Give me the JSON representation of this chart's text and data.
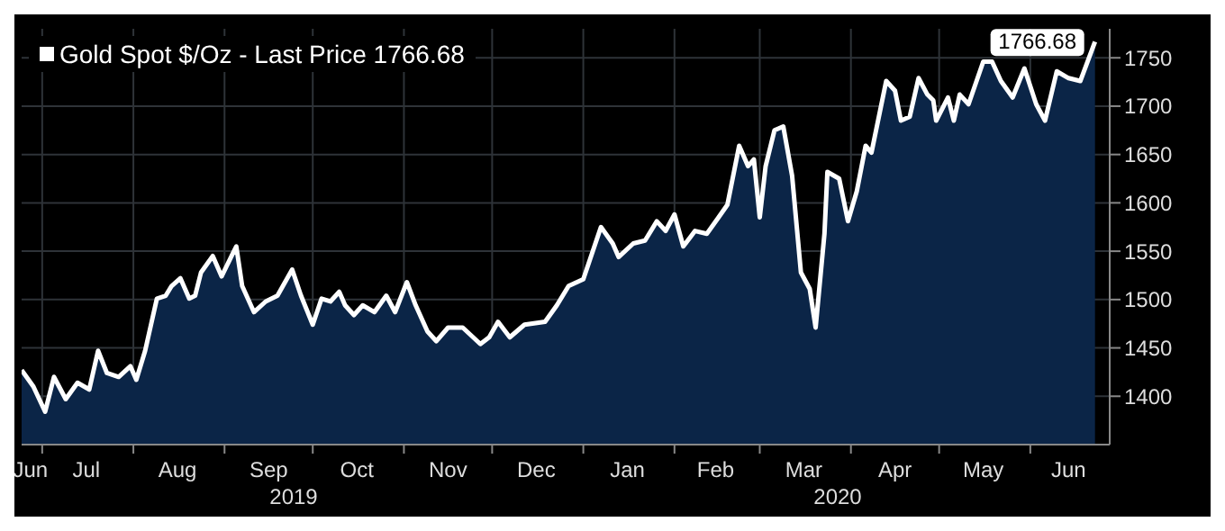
{
  "chart_data": {
    "type": "area",
    "legend": "top left",
    "grid": true,
    "ylim": [
      1350,
      1780
    ],
    "yticks": [
      1400,
      1450,
      1500,
      1550,
      1600,
      1650,
      1700,
      1750
    ],
    "xlim": [
      "2019-06-24",
      "2020-06-28"
    ],
    "xticks": [
      {
        "value": "2019-07-01",
        "label": null
      },
      {
        "value": "2019-08-01",
        "label": null
      },
      {
        "value": "2019-09-01",
        "label": null
      },
      {
        "value": "2019-10-01",
        "label": null
      },
      {
        "value": "2019-11-01",
        "label": null
      },
      {
        "value": "2019-12-01",
        "label": null
      },
      {
        "value": "2020-01-01",
        "label": null
      },
      {
        "value": "2020-02-01",
        "label": null
      },
      {
        "value": "2020-03-01",
        "label": null
      },
      {
        "value": "2020-04-01",
        "label": null
      },
      {
        "value": "2020-05-01",
        "label": null
      },
      {
        "value": "2020-06-01",
        "label": null
      },
      {
        "value": "2019-06-27",
        "label": "Jun"
      },
      {
        "value": "2019-07-16",
        "label": "Jul"
      },
      {
        "value": "2019-08-16",
        "label": "Aug"
      },
      {
        "value": "2019-09-16",
        "label": "Sep"
      },
      {
        "value": "2019-10-16",
        "label": "Oct"
      },
      {
        "value": "2019-11-16",
        "label": "Nov"
      },
      {
        "value": "2019-12-16",
        "label": "Dec"
      },
      {
        "value": "2020-01-16",
        "label": "Jan"
      },
      {
        "value": "2020-02-15",
        "label": "Feb"
      },
      {
        "value": "2020-03-16",
        "label": "Mar"
      },
      {
        "value": "2020-04-16",
        "label": "Apr"
      },
      {
        "value": "2020-05-16",
        "label": "May"
      },
      {
        "value": "2020-06-14",
        "label": "Jun"
      }
    ],
    "annotations": [
      "2019",
      "2020"
    ],
    "series": [
      {
        "name": "Gold Spot $/Oz - Last Price 1766.68",
        "color": "#ffffff",
        "x": [
          "2019-06-24",
          "2019-06-28",
          "2019-07-02",
          "2019-07-05",
          "2019-07-09",
          "2019-07-13",
          "2019-07-17",
          "2019-07-20",
          "2019-07-23",
          "2019-07-27",
          "2019-07-31",
          "2019-08-02",
          "2019-08-05",
          "2019-08-09",
          "2019-08-12",
          "2019-08-14",
          "2019-08-17",
          "2019-08-20",
          "2019-08-22",
          "2019-08-24",
          "2019-08-28",
          "2019-08-31",
          "2019-09-05",
          "2019-09-07",
          "2019-09-11",
          "2019-09-15",
          "2019-09-19",
          "2019-09-24",
          "2019-09-27",
          "2019-10-01",
          "2019-10-04",
          "2019-10-07",
          "2019-10-10",
          "2019-10-12",
          "2019-10-15",
          "2019-10-18",
          "2019-10-22",
          "2019-10-26",
          "2019-10-29",
          "2019-11-02",
          "2019-11-05",
          "2019-11-09",
          "2019-11-12",
          "2019-11-16",
          "2019-11-21",
          "2019-11-27",
          "2019-11-30",
          "2019-12-03",
          "2019-12-07",
          "2019-12-12",
          "2019-12-19",
          "2019-12-23",
          "2019-12-27",
          "2020-01-01",
          "2020-01-07",
          "2020-01-11",
          "2020-01-13",
          "2020-01-18",
          "2020-01-22",
          "2020-01-26",
          "2020-01-29",
          "2020-02-01",
          "2020-02-04",
          "2020-02-08",
          "2020-02-12",
          "2020-02-16",
          "2020-02-19",
          "2020-02-23",
          "2020-02-26",
          "2020-02-28",
          "2020-03-01",
          "2020-03-03",
          "2020-03-06",
          "2020-03-09",
          "2020-03-12",
          "2020-03-15",
          "2020-03-18",
          "2020-03-20",
          "2020-03-23",
          "2020-03-24",
          "2020-03-28",
          "2020-03-31",
          "2020-04-03",
          "2020-04-06",
          "2020-04-08",
          "2020-04-13",
          "2020-04-16",
          "2020-04-18",
          "2020-04-21",
          "2020-04-24",
          "2020-04-27",
          "2020-04-29",
          "2020-04-30",
          "2020-05-04",
          "2020-05-06",
          "2020-05-08",
          "2020-05-11",
          "2020-05-16",
          "2020-05-19",
          "2020-05-22",
          "2020-05-26",
          "2020-05-30",
          "2020-06-03",
          "2020-06-06",
          "2020-06-10",
          "2020-06-14",
          "2020-06-18",
          "2020-06-23"
        ],
        "values": [
          1427,
          1410,
          1384,
          1420,
          1397,
          1414,
          1407,
          1447,
          1424,
          1420,
          1431,
          1417,
          1447,
          1501,
          1504,
          1514,
          1522,
          1501,
          1504,
          1528,
          1545,
          1524,
          1555,
          1514,
          1487,
          1498,
          1504,
          1531,
          1504,
          1474,
          1501,
          1498,
          1508,
          1494,
          1484,
          1494,
          1487,
          1504,
          1487,
          1518,
          1494,
          1467,
          1457,
          1471,
          1471,
          1454,
          1461,
          1477,
          1461,
          1474,
          1477,
          1494,
          1514,
          1521,
          1575,
          1558,
          1544,
          1558,
          1561,
          1581,
          1571,
          1588,
          1555,
          1571,
          1568,
          1585,
          1598,
          1659,
          1638,
          1645,
          1585,
          1638,
          1675,
          1679,
          1628,
          1528,
          1511,
          1471,
          1568,
          1632,
          1625,
          1581,
          1612,
          1659,
          1652,
          1726,
          1716,
          1685,
          1689,
          1729,
          1712,
          1706,
          1685,
          1709,
          1685,
          1712,
          1702,
          1746,
          1746,
          1726,
          1709,
          1739,
          1702,
          1685,
          1736,
          1729,
          1726,
          1766.68
        ],
        "value_labels": [
          null,
          null,
          null,
          null,
          null,
          null,
          null,
          null,
          null,
          null,
          null,
          null,
          null,
          null,
          null,
          null,
          null,
          null,
          null,
          null,
          null,
          null,
          null,
          null,
          null,
          null,
          null,
          null,
          null,
          null,
          null,
          null,
          null,
          null,
          null,
          null,
          null,
          null,
          null,
          null,
          null,
          null,
          null,
          null,
          null,
          null,
          null,
          null,
          null,
          null,
          null,
          null,
          null,
          null,
          null,
          null,
          null,
          null,
          null,
          null,
          null,
          null,
          null,
          null,
          null,
          null,
          null,
          null,
          null,
          null,
          null,
          null,
          null,
          null,
          null,
          null,
          null,
          null,
          null,
          null,
          null,
          null,
          null,
          null,
          null,
          null,
          null,
          null,
          null,
          null,
          null,
          null,
          null,
          null,
          null,
          null,
          null,
          null,
          null,
          null,
          null,
          null,
          null,
          null,
          null,
          null,
          null,
          "1766.68"
        ]
      }
    ]
  }
}
